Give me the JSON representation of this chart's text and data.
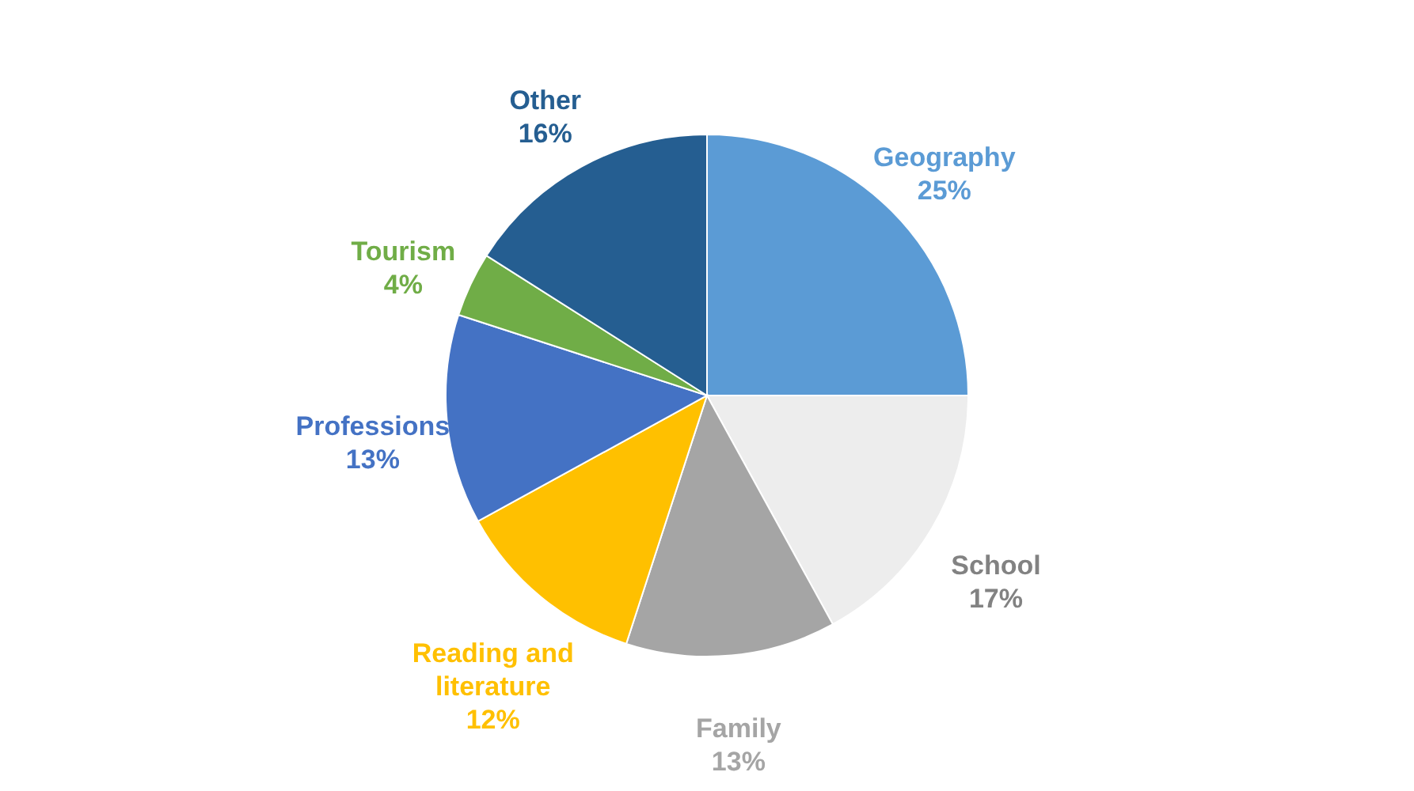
{
  "chart_data": {
    "type": "pie",
    "categories": [
      "Geography",
      "School",
      "Family",
      "Reading and literature",
      "Professions",
      "Tourism",
      "Other"
    ],
    "values": [
      25,
      17,
      13,
      12,
      13,
      4,
      16
    ],
    "value_labels": [
      "25%",
      "17%",
      "13%",
      "12%",
      "13%",
      "4%",
      "16%"
    ],
    "colors": [
      "#5b9bd5",
      "#ededed",
      "#a5a5a5",
      "#ffc000",
      "#4472c4",
      "#70ad47",
      "#255e91"
    ]
  }
}
